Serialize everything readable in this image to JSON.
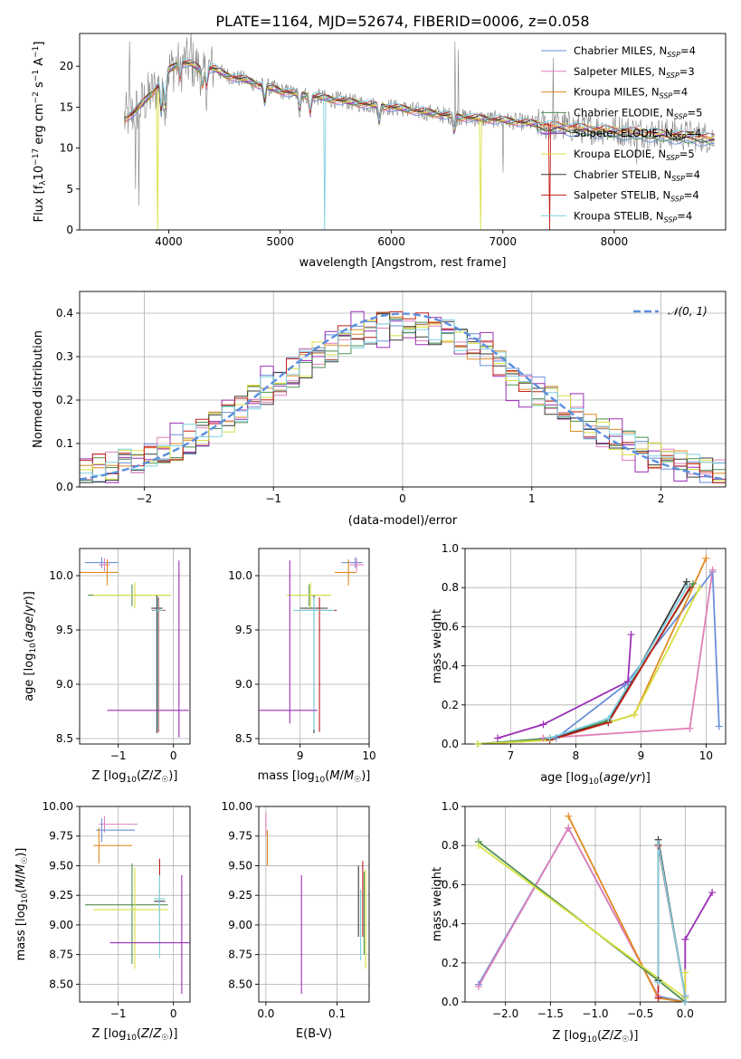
{
  "figure_title": "PLATE=1164, MJD=52674, FIBERID=0006, z=0.058",
  "colors": {
    "Chabrier MILES": "#6a8fd8",
    "Salpeter MILES": "#e07fb8",
    "Kroupa MILES": "#e08a22",
    "Chabrier ELODIE": "#4f8f4f",
    "Salpeter ELODIE": "#9b2fb5",
    "Kroupa ELODIE": "#d8e040",
    "Chabrier STELIB": "#3a3a3a",
    "Salpeter STELIB": "#c0201a",
    "Kroupa STELIB": "#7fd0e0",
    "data": "#808080",
    "normal": "#5b8fe0"
  },
  "chart_data": [
    {
      "id": "spectrum",
      "type": "line",
      "title": "PLATE=1164, MJD=52674, FIBERID=0006, z=0.058",
      "xlabel": "wavelength [Angstrom, rest frame]",
      "ylabel": "Flux [f_λ 10^-17 erg cm^-2 s^-1 A^-1]",
      "xlim": [
        3200,
        9000
      ],
      "ylim": [
        0,
        24
      ],
      "xticks": [
        4000,
        5000,
        6000,
        7000,
        8000
      ],
      "yticks": [
        0,
        5,
        10,
        15,
        20
      ],
      "grid": false,
      "legend_position": "top-right",
      "legend": [
        {
          "name": "Chabrier MILES",
          "label": "Chabrier MILES, N_SSP=4"
        },
        {
          "name": "Salpeter MILES",
          "label": "Salpeter MILES, N_SSP=3"
        },
        {
          "name": "Kroupa MILES",
          "label": "Kroupa MILES, N_SSP=4"
        },
        {
          "name": "Chabrier ELODIE",
          "label": "Chabrier ELODIE, N_SSP=5"
        },
        {
          "name": "Salpeter ELODIE",
          "label": "Salpeter ELODIE, N_SSP=4"
        },
        {
          "name": "Kroupa ELODIE",
          "label": "Kroupa ELODIE, N_SSP=5"
        },
        {
          "name": "Chabrier STELIB",
          "label": "Chabrier STELIB, N_SSP=4"
        },
        {
          "name": "Salpeter STELIB",
          "label": "Salpeter STELIB, N_SSP=4"
        },
        {
          "name": "Kroupa STELIB",
          "label": "Kroupa STELIB, N_SSP=4"
        }
      ],
      "continuum": {
        "x": [
          3600,
          3700,
          3800,
          3900,
          4000,
          4100,
          4200,
          4300,
          4400,
          4500,
          4600,
          4700,
          4800,
          4900,
          5000,
          5200,
          5400,
          5600,
          5800,
          6000,
          6200,
          6400,
          6600,
          6800,
          7000,
          7200,
          7400,
          7600,
          7800,
          8000,
          8200,
          8400,
          8600,
          8800,
          8900
        ],
        "y": [
          13.5,
          14.5,
          16.0,
          17.5,
          19.5,
          20.5,
          20.3,
          19.5,
          19.8,
          19.0,
          18.6,
          18.3,
          17.8,
          17.4,
          17.0,
          16.5,
          16.1,
          15.7,
          15.3,
          15.0,
          14.6,
          14.2,
          13.8,
          13.6,
          13.4,
          13.1,
          12.8,
          12.6,
          12.4,
          12.2,
          12.0,
          11.8,
          11.6,
          11.4,
          11.2
        ]
      },
      "model_dips": [
        {
          "model": "Kroupa ELODIE",
          "x": 3900,
          "depth_to": 0
        },
        {
          "model": "Kroupa STELIB",
          "x": 5400,
          "depth_to": 0
        },
        {
          "model": "Kroupa ELODIE",
          "x": 6800,
          "depth_to": 0
        },
        {
          "model": "Salpeter STELIB",
          "x": 7420,
          "depth_to": 0
        }
      ]
    },
    {
      "id": "residuals",
      "type": "histogram",
      "xlabel": "(data-model)/error",
      "ylabel": "Normed distribution",
      "xlim": [
        -2.5,
        2.5
      ],
      "ylim": [
        0,
        0.45
      ],
      "xticks": [
        -2,
        -1,
        0,
        1,
        2
      ],
      "yticks": [
        0.0,
        0.1,
        0.2,
        0.3,
        0.4
      ],
      "grid": true,
      "legend_position": "top-right",
      "normal_curve_label": "𝒩(0, 1)",
      "bin_width": 0.1,
      "bin_start": -2.5
    },
    {
      "id": "age_vs_Z",
      "type": "errorbar",
      "xlabel": "Z [log10(Z/Z☉)]",
      "ylabel": "age [log10(age/yr)]",
      "xlim": [
        -1.7,
        0.3
      ],
      "ylim": [
        8.45,
        10.25
      ],
      "xticks": [
        -1,
        0
      ],
      "yticks": [
        8.5,
        9.0,
        9.5,
        10.0
      ],
      "grid": true,
      "points": [
        {
          "model": "Chabrier MILES",
          "x": -1.3,
          "xerr": [
            0.3,
            0.3
          ],
          "y": 10.12,
          "yerr": [
            0.05,
            0.05
          ]
        },
        {
          "model": "Salpeter MILES",
          "x": -1.25,
          "xerr": [
            0.1,
            0.1
          ],
          "y": 10.1,
          "yerr": [
            0.06,
            0.06
          ]
        },
        {
          "model": "Kroupa MILES",
          "x": -1.2,
          "xerr": [
            0.6,
            0.2
          ],
          "y": 10.03,
          "yerr": [
            0.12,
            0.12
          ]
        },
        {
          "model": "Chabrier ELODIE",
          "x": -0.75,
          "xerr": [
            0.8,
            0.7
          ],
          "y": 9.82,
          "yerr": [
            0.1,
            0.1
          ]
        },
        {
          "model": "Kroupa ELODIE",
          "x": -0.7,
          "xerr": [
            0.75,
            0.65
          ],
          "y": 9.82,
          "yerr": [
            0.12,
            0.12
          ]
        },
        {
          "model": "Chabrier STELIB",
          "x": -0.3,
          "xerr": [
            0.1,
            0.1
          ],
          "y": 9.7,
          "yerr": [
            1.15,
            0.12
          ]
        },
        {
          "model": "Salpeter STELIB",
          "x": -0.27,
          "xerr": [
            0.12,
            0.12
          ],
          "y": 9.68,
          "yerr": [
            1.12,
            0.12
          ]
        },
        {
          "model": "Kroupa STELIB",
          "x": -0.28,
          "xerr": [
            0.1,
            0.1
          ],
          "y": 9.68,
          "yerr": [
            1.1,
            0.12
          ]
        },
        {
          "model": "Salpeter ELODIE",
          "x": 0.1,
          "xerr": [
            1.3,
            0.18
          ],
          "y": 8.76,
          "yerr": [
            0.25,
            1.38
          ]
        }
      ]
    },
    {
      "id": "age_vs_mass",
      "type": "errorbar",
      "xlabel": "mass [log10(M/M☉)]",
      "ylabel": "",
      "xlim": [
        8.4,
        10.0
      ],
      "ylim": [
        8.45,
        10.25
      ],
      "xticks": [
        9,
        10
      ],
      "yticks": [
        8.5,
        9.0,
        9.5,
        10.0
      ],
      "grid": true,
      "points": [
        {
          "model": "Chabrier MILES",
          "x": 9.8,
          "xerr": [
            0.2,
            0.1
          ],
          "y": 10.12,
          "yerr": [
            0.05,
            0.05
          ]
        },
        {
          "model": "Salpeter MILES",
          "x": 9.82,
          "xerr": [
            0.1,
            0.1
          ],
          "y": 10.1,
          "yerr": [
            0.06,
            0.06
          ]
        },
        {
          "model": "Kroupa MILES",
          "x": 9.7,
          "xerr": [
            0.2,
            0.12
          ],
          "y": 10.03,
          "yerr": [
            0.12,
            0.12
          ]
        },
        {
          "model": "Chabrier ELODIE",
          "x": 9.13,
          "xerr": [
            0.3,
            0.3
          ],
          "y": 9.82,
          "yerr": [
            0.1,
            0.1
          ]
        },
        {
          "model": "Kroupa ELODIE",
          "x": 9.15,
          "xerr": [
            0.35,
            0.3
          ],
          "y": 9.82,
          "yerr": [
            0.12,
            0.12
          ]
        },
        {
          "model": "Chabrier STELIB",
          "x": 9.2,
          "xerr": [
            0.2,
            0.2
          ],
          "y": 9.7,
          "yerr": [
            1.15,
            0.12
          ]
        },
        {
          "model": "Salpeter STELIB",
          "x": 9.28,
          "xerr": [
            0.25,
            0.25
          ],
          "y": 9.68,
          "yerr": [
            1.12,
            0.12
          ]
        },
        {
          "model": "Kroupa STELIB",
          "x": 9.2,
          "xerr": [
            0.3,
            0.3
          ],
          "y": 9.68,
          "yerr": [
            1.1,
            0.12
          ]
        },
        {
          "model": "Salpeter ELODIE",
          "x": 8.85,
          "xerr": [
            0.45,
            0.4
          ],
          "y": 8.76,
          "yerr": [
            0.12,
            1.38
          ]
        }
      ]
    },
    {
      "id": "weight_vs_age",
      "type": "line",
      "xlabel": "age [log10(age/yr)]",
      "ylabel": "mass weight",
      "xlim": [
        6.3,
        10.3
      ],
      "ylim": [
        0,
        1.0
      ],
      "xticks": [
        7,
        8,
        9,
        10
      ],
      "yticks": [
        0.0,
        0.2,
        0.4,
        0.6,
        0.8,
        1.0
      ],
      "grid": true,
      "series": [
        {
          "model": "Chabrier MILES",
          "x": [
            6.5,
            7.7,
            8.75,
            10.1,
            10.2
          ],
          "y": [
            0.0,
            0.03,
            0.3,
            0.88,
            0.09
          ]
        },
        {
          "model": "Salpeter MILES",
          "x": [
            7.5,
            9.75,
            10.1
          ],
          "y": [
            0.03,
            0.08,
            0.89
          ]
        },
        {
          "model": "Kroupa MILES",
          "x": [
            6.5,
            7.6,
            8.9,
            10.0
          ],
          "y": [
            0.0,
            0.02,
            0.15,
            0.95
          ]
        },
        {
          "model": "Chabrier ELODIE",
          "x": [
            6.5,
            7.6,
            8.5,
            9.8
          ],
          "y": [
            0.0,
            0.03,
            0.12,
            0.82
          ]
        },
        {
          "model": "Salpeter ELODIE",
          "x": [
            6.8,
            7.5,
            8.8,
            8.85
          ],
          "y": [
            0.03,
            0.1,
            0.32,
            0.56
          ]
        },
        {
          "model": "Kroupa ELODIE",
          "x": [
            6.5,
            7.6,
            8.9,
            9.9
          ],
          "y": [
            0.0,
            0.02,
            0.15,
            0.8
          ]
        },
        {
          "model": "Chabrier STELIB",
          "x": [
            7.6,
            8.5,
            9.7
          ],
          "y": [
            0.03,
            0.11,
            0.83
          ]
        },
        {
          "model": "Salpeter STELIB",
          "x": [
            7.6,
            8.5,
            9.75
          ],
          "y": [
            0.02,
            0.11,
            0.8
          ]
        },
        {
          "model": "Kroupa STELIB",
          "x": [
            7.6,
            8.5,
            9.72
          ],
          "y": [
            0.03,
            0.13,
            0.81
          ]
        }
      ]
    },
    {
      "id": "mass_vs_Z",
      "type": "errorbar",
      "xlabel": "Z [log10(Z/Z☉)]",
      "ylabel": "mass [log10(M/M☉)]",
      "xlim": [
        -1.7,
        0.3
      ],
      "ylim": [
        8.35,
        10.0
      ],
      "xticks": [
        -1,
        0
      ],
      "yticks": [
        8.5,
        8.75,
        9.0,
        9.25,
        9.5,
        9.75,
        10.0
      ],
      "grid": true,
      "points": [
        {
          "model": "Salpeter MILES",
          "x": -1.25,
          "xerr": [
            0.1,
            0.6
          ],
          "y": 9.85,
          "yerr": [
            0.07,
            0.07
          ]
        },
        {
          "model": "Chabrier MILES",
          "x": -1.3,
          "xerr": [
            0.1,
            0.6
          ],
          "y": 9.8,
          "yerr": [
            0.1,
            0.1
          ]
        },
        {
          "model": "Kroupa MILES",
          "x": -1.35,
          "xerr": [
            0.1,
            0.6
          ],
          "y": 9.67,
          "yerr": [
            0.15,
            0.15
          ]
        },
        {
          "model": "Chabrier ELODIE",
          "x": -0.75,
          "xerr": [
            0.85,
            0.65
          ],
          "y": 9.17,
          "yerr": [
            0.5,
            0.35
          ]
        },
        {
          "model": "Kroupa ELODIE",
          "x": -0.7,
          "xerr": [
            0.75,
            0.6
          ],
          "y": 9.13,
          "yerr": [
            0.5,
            0.35
          ]
        },
        {
          "model": "Salpeter STELIB",
          "x": -0.25,
          "xerr": [
            0.0,
            0.0
          ],
          "y": 9.48,
          "yerr": [
            0.08,
            0.08
          ]
        },
        {
          "model": "Chabrier STELIB",
          "x": -0.25,
          "xerr": [
            0.1,
            0.1
          ],
          "y": 9.2,
          "yerr": [
            0.2,
            0.2
          ]
        },
        {
          "model": "Kroupa STELIB",
          "x": -0.25,
          "xerr": [
            0.1,
            0.1
          ],
          "y": 9.22,
          "yerr": [
            0.5,
            0.2
          ]
        },
        {
          "model": "Salpeter ELODIE",
          "x": 0.15,
          "xerr": [
            1.3,
            0.15
          ],
          "y": 8.85,
          "yerr": [
            0.43,
            0.57
          ]
        }
      ]
    },
    {
      "id": "mass_vs_EBV",
      "type": "errorbar",
      "xlabel": "E(B-V)",
      "ylabel": "",
      "xlim": [
        -0.01,
        0.145
      ],
      "ylim": [
        8.35,
        10.0
      ],
      "xticks": [
        0.0,
        0.1
      ],
      "yticks": [
        8.5,
        8.75,
        9.0,
        9.25,
        9.5,
        9.75,
        10.0
      ],
      "grid": true,
      "points": [
        {
          "model": "Salpeter MILES",
          "x": 0.0,
          "y": 9.85,
          "yerr": [
            0.1,
            0.1
          ]
        },
        {
          "model": "Kroupa MILES",
          "x": 0.002,
          "y": 9.65,
          "yerr": [
            0.15,
            0.15
          ]
        },
        {
          "model": "Salpeter ELODIE",
          "x": 0.05,
          "y": 8.85,
          "yerr": [
            0.43,
            0.57
          ]
        },
        {
          "model": "Chabrier STELIB",
          "x": 0.13,
          "y": 9.2,
          "yerr": [
            0.3,
            0.3
          ]
        },
        {
          "model": "Kroupa STELIB",
          "x": 0.133,
          "y": 9.0,
          "yerr": [
            0.3,
            0.3
          ]
        },
        {
          "model": "Salpeter STELIB",
          "x": 0.136,
          "y": 9.22,
          "yerr": [
            0.32,
            0.32
          ]
        },
        {
          "model": "Kroupa ELODIE",
          "x": 0.14,
          "y": 9.05,
          "yerr": [
            0.42,
            0.42
          ]
        },
        {
          "model": "Chabrier ELODIE",
          "x": 0.138,
          "y": 9.1,
          "yerr": [
            0.35,
            0.35
          ]
        }
      ]
    },
    {
      "id": "weight_vs_Z",
      "type": "line",
      "xlabel": "Z [log10(Z/Z☉)]",
      "ylabel": "mass weight",
      "xlim": [
        -2.45,
        0.45
      ],
      "ylim": [
        0,
        1.0
      ],
      "xticks": [
        -2.0,
        -1.5,
        -1.0,
        -0.5,
        0.0
      ],
      "yticks": [
        0.0,
        0.2,
        0.4,
        0.6,
        0.8,
        1.0
      ],
      "grid": true,
      "series": [
        {
          "model": "Chabrier MILES",
          "x": [
            -2.3,
            -1.3,
            -0.3,
            0.0
          ],
          "y": [
            0.09,
            0.89,
            0.03,
            0.0
          ]
        },
        {
          "model": "Salpeter MILES",
          "x": [
            -2.3,
            -1.3,
            -0.3
          ],
          "y": [
            0.08,
            0.89,
            0.03
          ]
        },
        {
          "model": "Kroupa MILES",
          "x": [
            -1.3,
            -0.3,
            0.0
          ],
          "y": [
            0.95,
            0.02,
            0.0
          ]
        },
        {
          "model": "Chabrier ELODIE",
          "x": [
            -2.3,
            -0.3,
            0.0
          ],
          "y": [
            0.82,
            0.11,
            0.0
          ]
        },
        {
          "model": "Salpeter ELODIE",
          "x": [
            0.0,
            0.0,
            0.3
          ],
          "y": [
            0.0,
            0.32,
            0.56
          ]
        },
        {
          "model": "Kroupa ELODIE",
          "x": [
            -2.3,
            0.0,
            0.0
          ],
          "y": [
            0.8,
            0.02,
            0.15
          ]
        },
        {
          "model": "Chabrier STELIB",
          "x": [
            -0.3,
            -0.3,
            0.0,
            0.0
          ],
          "y": [
            0.11,
            0.83,
            0.03,
            0.0
          ]
        },
        {
          "model": "Salpeter STELIB",
          "x": [
            -0.3,
            -0.3,
            0.0
          ],
          "y": [
            0.02,
            0.8,
            0.03
          ]
        },
        {
          "model": "Kroupa STELIB",
          "x": [
            -0.3,
            -0.3,
            0.0,
            0.0
          ],
          "y": [
            0.1,
            0.81,
            0.03,
            0.0
          ]
        }
      ]
    }
  ]
}
